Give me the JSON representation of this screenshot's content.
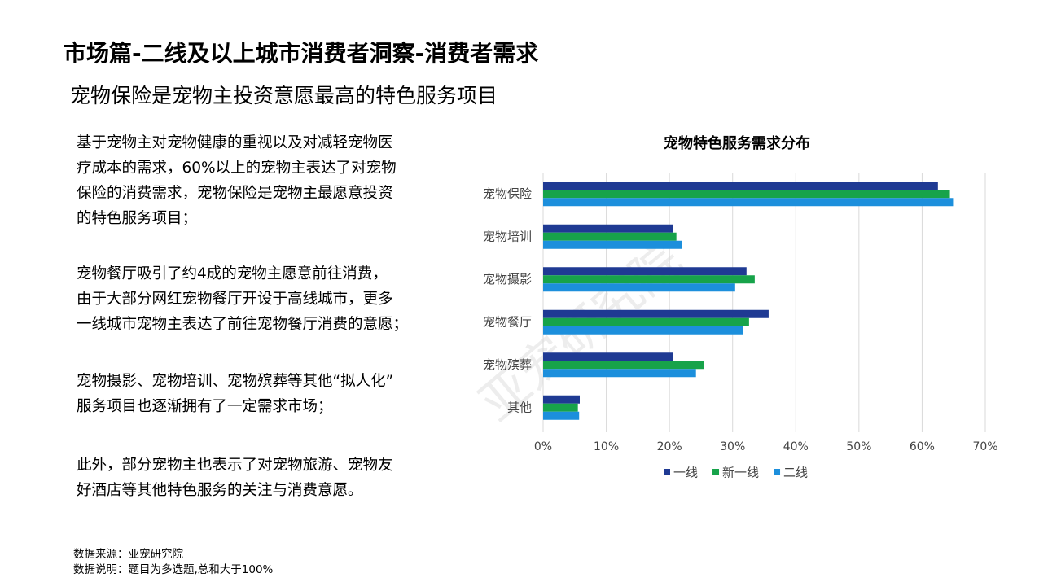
{
  "header": {
    "title": "市场篇-二线及以上城市消费者洞察-消费者需求",
    "subtitle": "宠物保险是宠物主投资意愿最高的特色服务项目"
  },
  "paragraphs": [
    [
      "基于宠物主对宠物健康的重视以及对减轻宠物医",
      "疗成本的需求，60%以上的宠物主表达了对宠物",
      "保险的消费需求，宠物保险是宠物主最愿意投资",
      "的特色服务项目；"
    ],
    [
      "宠物餐厅吸引了约4成的宠物主愿意前往消费，",
      "由于大部分网红宠物餐厅开设于高线城市，更多",
      "一线城市宠物主表达了前往宠物餐厅消费的意愿；"
    ],
    [
      "宠物摄影、宠物培训、宠物殡葬等其他“拟人化”",
      "服务项目也逐渐拥有了一定需求市场；"
    ],
    [
      "此外，部分宠物主也表示了对宠物旅游、宠物友",
      "好酒店等其他特色服务的关注与消费意愿。"
    ]
  ],
  "notes": [
    "数据来源：亚宠研究院",
    "数据说明：题目为多选题,总和大于100%"
  ],
  "watermark": "亚宠研究院",
  "chart_data": {
    "type": "bar",
    "orientation": "horizontal",
    "title": "宠物特色服务需求分布",
    "categories": [
      "宠物保险",
      "宠物培训",
      "宠物摄影",
      "宠物餐厅",
      "宠物殡葬",
      "其他"
    ],
    "series": [
      {
        "name": "一线",
        "color": "#1f3a93",
        "values": [
          62.5,
          20.5,
          32.2,
          35.7,
          20.5,
          5.8
        ]
      },
      {
        "name": "新一线",
        "color": "#17a34a",
        "values": [
          64.4,
          21.1,
          33.5,
          32.6,
          25.4,
          5.5
        ]
      },
      {
        "name": "二线",
        "color": "#1c8fdc",
        "values": [
          64.9,
          22.0,
          30.4,
          31.6,
          24.2,
          5.7
        ]
      }
    ],
    "xlim": [
      0,
      70
    ],
    "xticks": [
      {
        "value": 0,
        "label": "0%"
      },
      {
        "value": 10,
        "label": "10%"
      },
      {
        "value": 20,
        "label": "20%"
      },
      {
        "value": 30,
        "label": "30%"
      },
      {
        "value": 40,
        "label": "40%"
      },
      {
        "value": 50,
        "label": "50%"
      },
      {
        "value": 60,
        "label": "60%"
      },
      {
        "value": 70,
        "label": "70%"
      }
    ],
    "grid": true,
    "legend": "bottom"
  }
}
